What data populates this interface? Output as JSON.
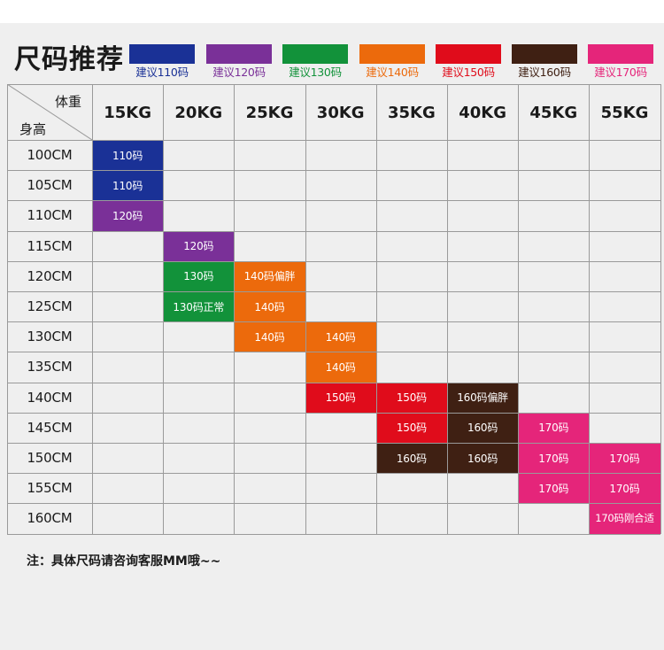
{
  "title": "尺码推荐",
  "colors": {
    "110": "#1a3196",
    "120": "#7a3098",
    "130": "#12923a",
    "140": "#ec6a0c",
    "150": "#e00c1b",
    "160": "#3f2013",
    "170": "#e5257a"
  },
  "legend": [
    {
      "key": "110",
      "label": "建议110码"
    },
    {
      "key": "120",
      "label": "建议120码"
    },
    {
      "key": "130",
      "label": "建议130码"
    },
    {
      "key": "140",
      "label": "建议140码"
    },
    {
      "key": "150",
      "label": "建议150码"
    },
    {
      "key": "160",
      "label": "建议160码"
    },
    {
      "key": "170",
      "label": "建议170码"
    }
  ],
  "table": {
    "corner_weight": "体重",
    "corner_height": "身高",
    "columns": [
      "15KG",
      "20KG",
      "25KG",
      "30KG",
      "35KG",
      "40KG",
      "45KG",
      "55KG"
    ],
    "rows": [
      "100CM",
      "105CM",
      "110CM",
      "115CM",
      "120CM",
      "125CM",
      "130CM",
      "135CM",
      "140CM",
      "145CM",
      "150CM",
      "155CM",
      "160CM"
    ],
    "cells": [
      {
        "row": 0,
        "col": 0,
        "key": "110",
        "text": "110码"
      },
      {
        "row": 1,
        "col": 0,
        "key": "110",
        "text": "110码"
      },
      {
        "row": 2,
        "col": 0,
        "key": "120",
        "text": "120码"
      },
      {
        "row": 3,
        "col": 1,
        "key": "120",
        "text": "120码"
      },
      {
        "row": 4,
        "col": 1,
        "key": "130",
        "text": "130码"
      },
      {
        "row": 4,
        "col": 2,
        "key": "140",
        "text": "140码偏胖"
      },
      {
        "row": 5,
        "col": 1,
        "key": "130",
        "text": "130码正常"
      },
      {
        "row": 5,
        "col": 2,
        "key": "140",
        "text": "140码"
      },
      {
        "row": 6,
        "col": 2,
        "key": "140",
        "text": "140码"
      },
      {
        "row": 6,
        "col": 3,
        "key": "140",
        "text": "140码"
      },
      {
        "row": 7,
        "col": 3,
        "key": "140",
        "text": "140码"
      },
      {
        "row": 8,
        "col": 3,
        "key": "150",
        "text": "150码"
      },
      {
        "row": 8,
        "col": 4,
        "key": "150",
        "text": "150码"
      },
      {
        "row": 8,
        "col": 5,
        "key": "160",
        "text": "160码偏胖"
      },
      {
        "row": 9,
        "col": 4,
        "key": "150",
        "text": "150码"
      },
      {
        "row": 9,
        "col": 5,
        "key": "160",
        "text": "160码"
      },
      {
        "row": 9,
        "col": 6,
        "key": "170",
        "text": "170码"
      },
      {
        "row": 10,
        "col": 4,
        "key": "160",
        "text": "160码"
      },
      {
        "row": 10,
        "col": 5,
        "key": "160",
        "text": "160码"
      },
      {
        "row": 10,
        "col": 6,
        "key": "170",
        "text": "170码"
      },
      {
        "row": 10,
        "col": 7,
        "key": "170",
        "text": "170码"
      },
      {
        "row": 11,
        "col": 6,
        "key": "170",
        "text": "170码"
      },
      {
        "row": 11,
        "col": 7,
        "key": "170",
        "text": "170码"
      },
      {
        "row": 12,
        "col": 7,
        "key": "170",
        "text": "170码刚合适"
      }
    ]
  },
  "note": "注：具体尺码请咨询客服MM哦~~"
}
